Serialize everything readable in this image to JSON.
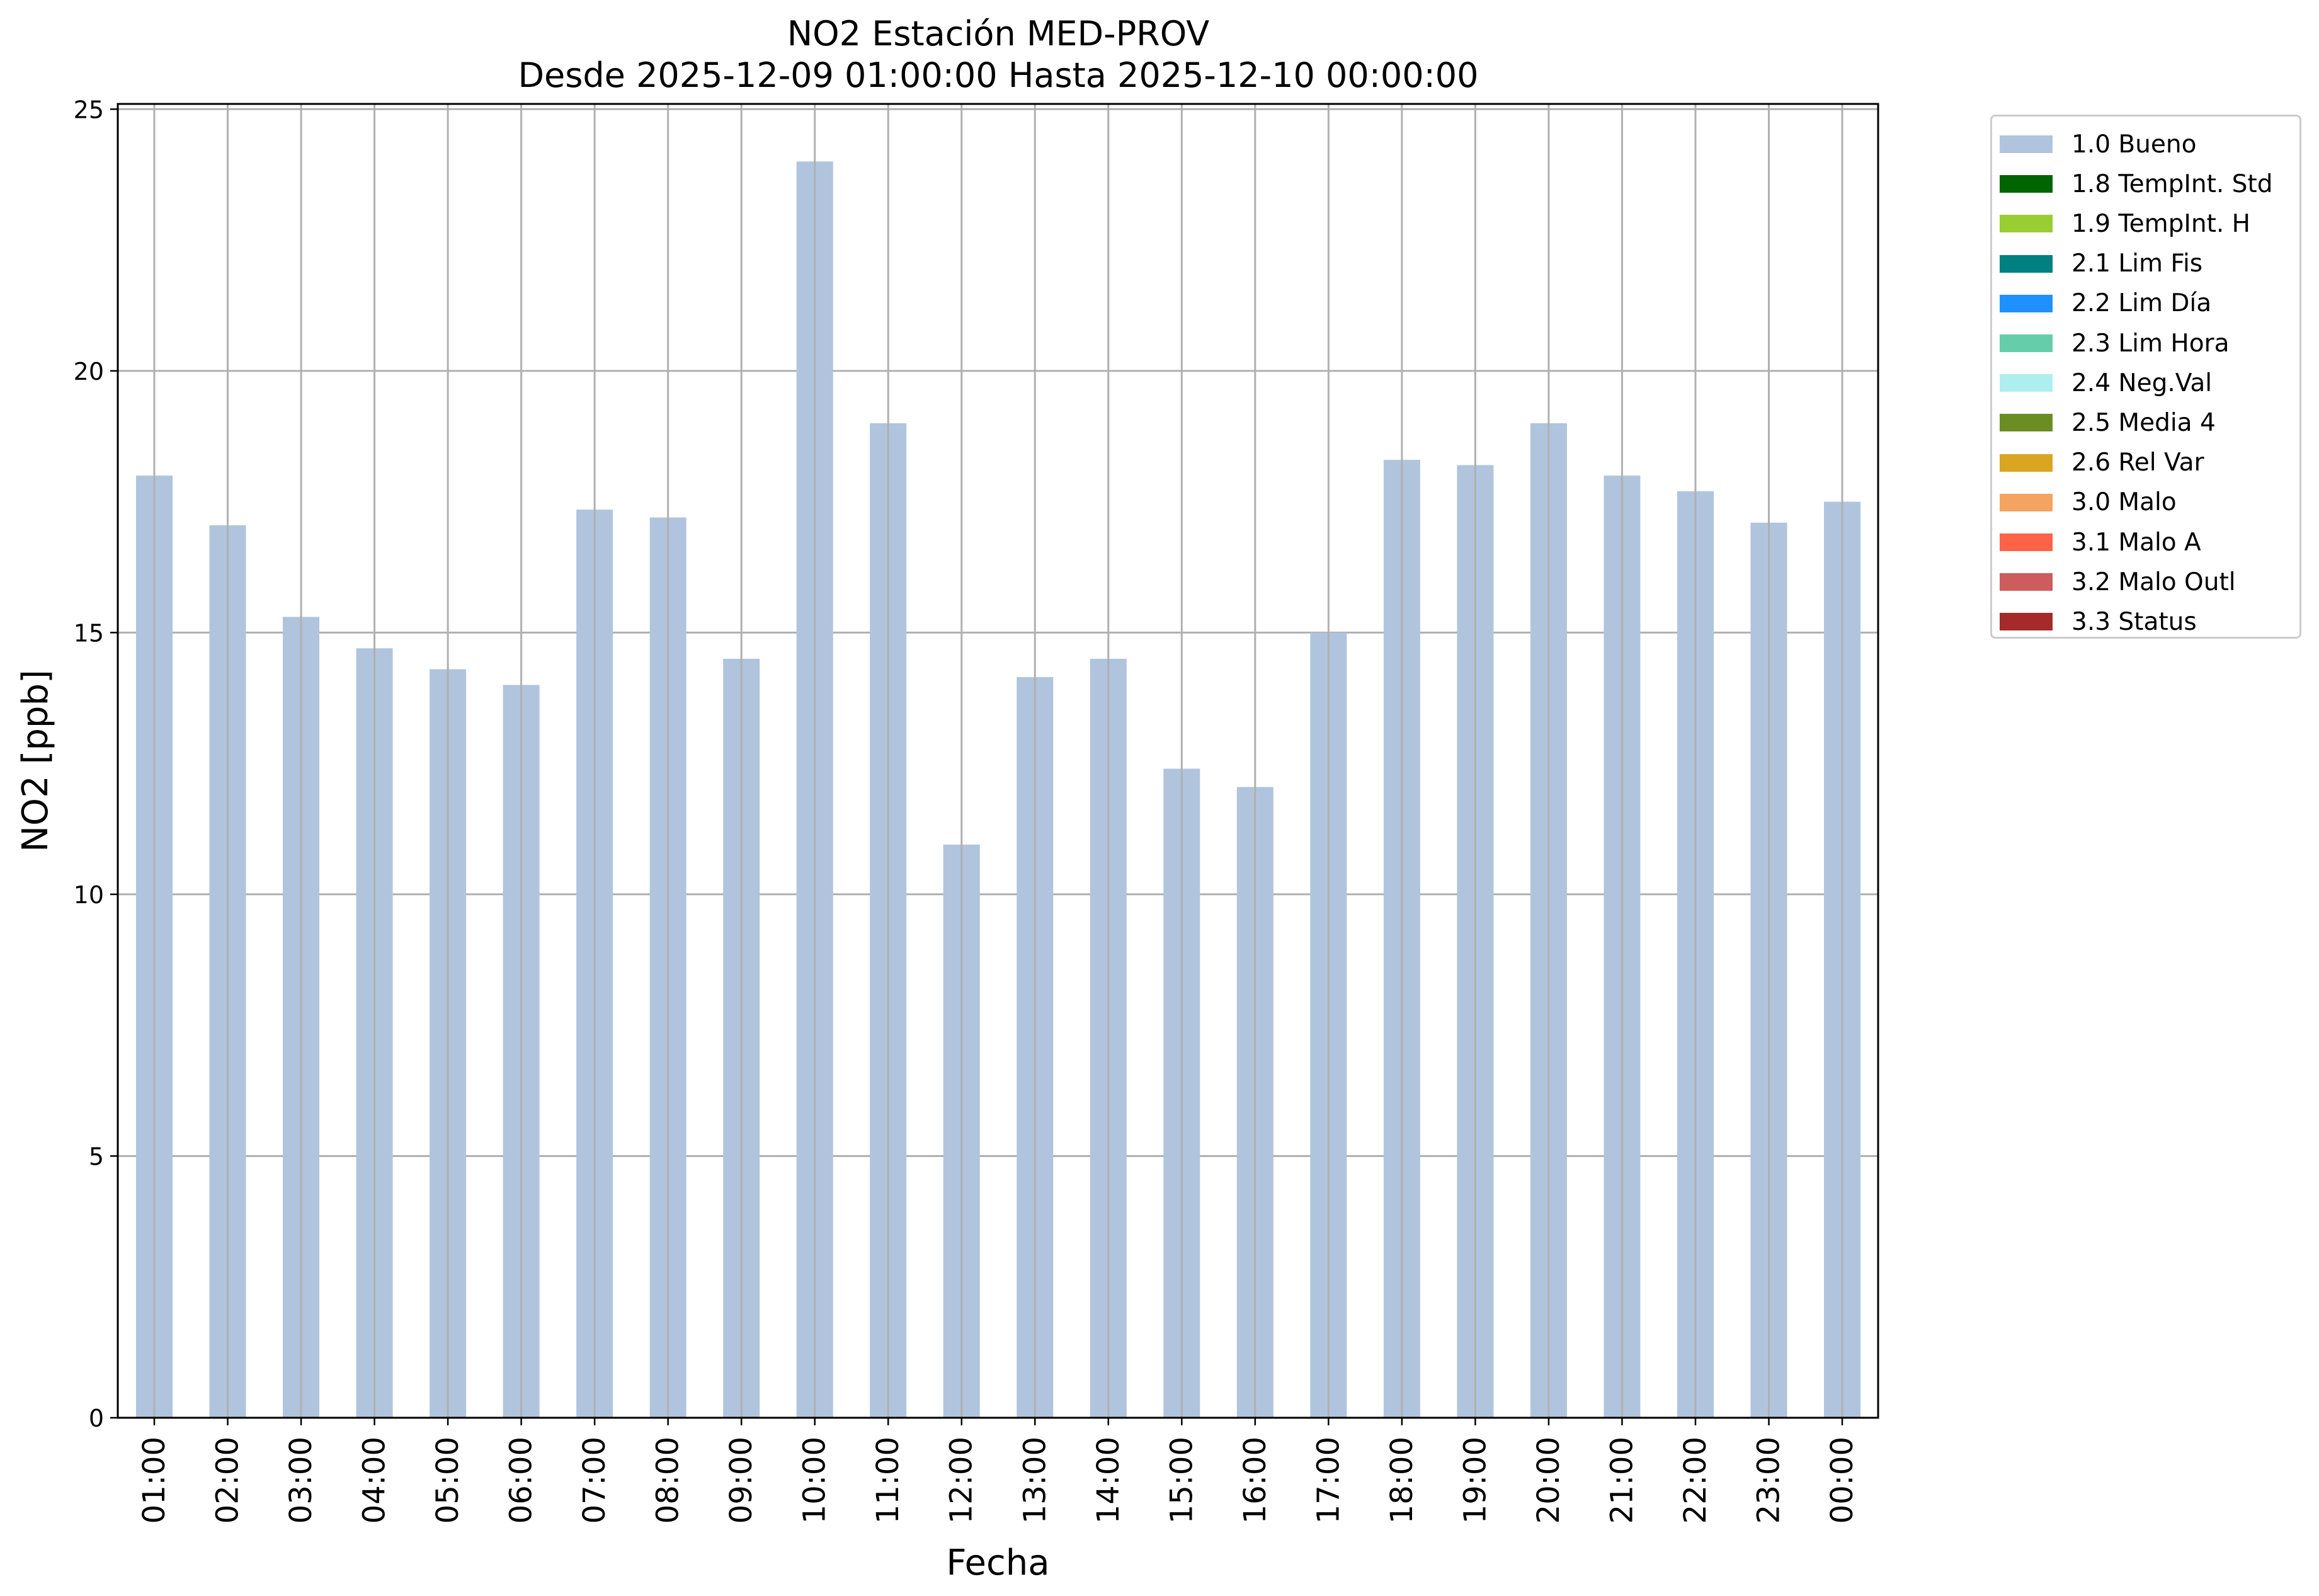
{
  "title": "NO2 Estación MED-PROV",
  "subtitle": "Desde 2025-12-09 01:00:00 Hasta 2025-12-10 00:00:00",
  "chart_data": {
    "type": "bar",
    "title": "NO2 Estación MED-PROV",
    "subtitle": "Desde 2025-12-09 01:00:00 Hasta 2025-12-10 00:00:00",
    "xlabel": "Fecha",
    "ylabel": "NO2 [ppb]",
    "ylim": [
      0,
      25.1
    ],
    "yticks": [
      "0",
      "5",
      "10",
      "15",
      "20",
      "25"
    ],
    "grid": true,
    "legend_position": "outside right",
    "categories": [
      "01:00",
      "02:00",
      "03:00",
      "04:00",
      "05:00",
      "06:00",
      "07:00",
      "08:00",
      "09:00",
      "10:00",
      "11:00",
      "12:00",
      "13:00",
      "14:00",
      "15:00",
      "16:00",
      "17:00",
      "18:00",
      "19:00",
      "20:00",
      "21:00",
      "22:00",
      "23:00",
      "00:00"
    ],
    "series": [
      {
        "name": "1.0 Bueno",
        "color": "#b0c4de",
        "values": [
          18.0,
          17.05,
          15.3,
          14.7,
          14.3,
          14.0,
          17.35,
          17.2,
          14.5,
          24.0,
          19.0,
          10.95,
          14.15,
          14.5,
          12.4,
          12.05,
          15.0,
          18.3,
          18.2,
          19.0,
          18.0,
          17.7,
          17.1,
          17.5
        ]
      }
    ],
    "legend": [
      {
        "label": "1.0 Bueno",
        "color": "#b0c4de"
      },
      {
        "label": "1.8 TempInt. Std",
        "color": "#006400"
      },
      {
        "label": "1.9 TempInt. H",
        "color": "#9acd32"
      },
      {
        "label": "2.1 Lim Fis",
        "color": "#008080"
      },
      {
        "label": "2.2 Lim Día",
        "color": "#1e90ff"
      },
      {
        "label": "2.3 Lim Hora",
        "color": "#66cdaa"
      },
      {
        "label": "2.4 Neg.Val",
        "color": "#afeeee"
      },
      {
        "label": "2.5 Media 4",
        "color": "#6b8e23"
      },
      {
        "label": "2.6 Rel Var",
        "color": "#daa520"
      },
      {
        "label": "3.0 Malo",
        "color": "#f4a460"
      },
      {
        "label": "3.1 Malo A",
        "color": "#ff6347"
      },
      {
        "label": "3.2 Malo Outl",
        "color": "#cd5c5c"
      },
      {
        "label": "3.3 Status",
        "color": "#a52a2a"
      }
    ]
  }
}
